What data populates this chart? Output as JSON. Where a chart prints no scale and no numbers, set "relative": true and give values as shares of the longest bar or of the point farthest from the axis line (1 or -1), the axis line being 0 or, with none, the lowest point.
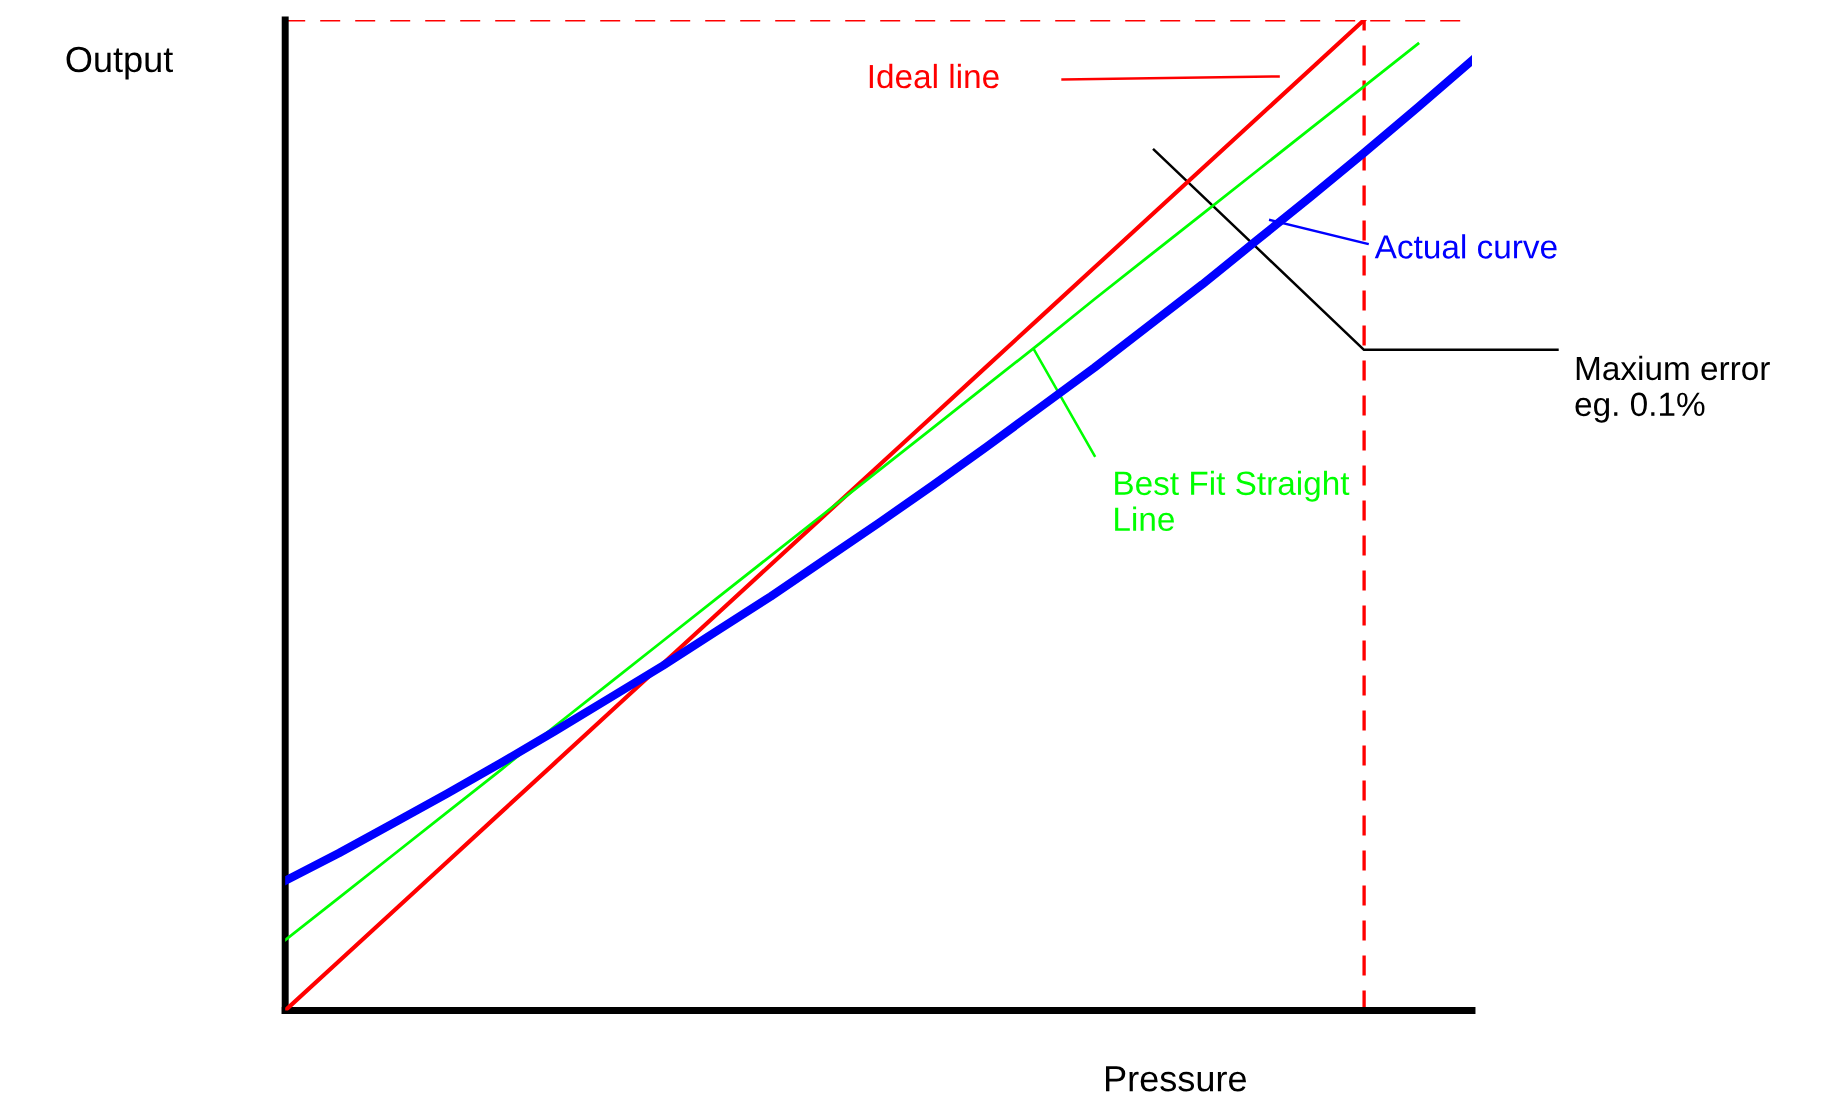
{
  "chart_data": {
    "type": "line",
    "relative": true,
    "xlabel": "Pressure",
    "ylabel": "Output",
    "categories": [
      null,
      null,
      null,
      null,
      null,
      null,
      null,
      null,
      null,
      null,
      null,
      null,
      null,
      null,
      null,
      null,
      null,
      null,
      null,
      null,
      null,
      null,
      null
    ],
    "grid": false,
    "legend": false,
    "marker": "none",
    "line_style": "solid",
    "series": [
      {
        "color": "#ff0000",
        "values": [
          0,
          0.05,
          0.1,
          0.15,
          0.2,
          0.25,
          0.3,
          0.35,
          0.4,
          0.45,
          0.5,
          0.55,
          0.6,
          0.65,
          0.7,
          0.75,
          0.8,
          0.85,
          0.9,
          0.95,
          1.0,
          null,
          null
        ]
      },
      {
        "color": "#00ff00",
        "values": [
          0.071,
          0.114,
          0.157,
          0.2,
          0.243,
          0.287,
          0.33,
          0.373,
          0.416,
          0.459,
          0.502,
          0.545,
          0.588,
          0.631,
          0.674,
          0.718,
          0.761,
          0.804,
          0.847,
          0.89,
          0.933,
          0.976,
          null
        ]
      },
      {
        "color": "#0000ff",
        "values": [
          0.131,
          0.159,
          0.189,
          0.219,
          0.25,
          0.282,
          0.315,
          0.348,
          0.383,
          0.418,
          0.455,
          0.492,
          0.53,
          0.569,
          0.609,
          0.649,
          0.691,
          0.733,
          0.777,
          0.821,
          0.866,
          0.912,
          0.959
        ]
      }
    ],
    "ref_lines": [
      {
        "axis": "y",
        "value": 1.0,
        "color": "#ff0000",
        "line_style": "dashed"
      }
    ],
    "annotations": [
      "Ideal line",
      "Actual curve",
      "Maxium error\neg. 0.1%",
      "Best Fit Straight\nLine"
    ]
  }
}
